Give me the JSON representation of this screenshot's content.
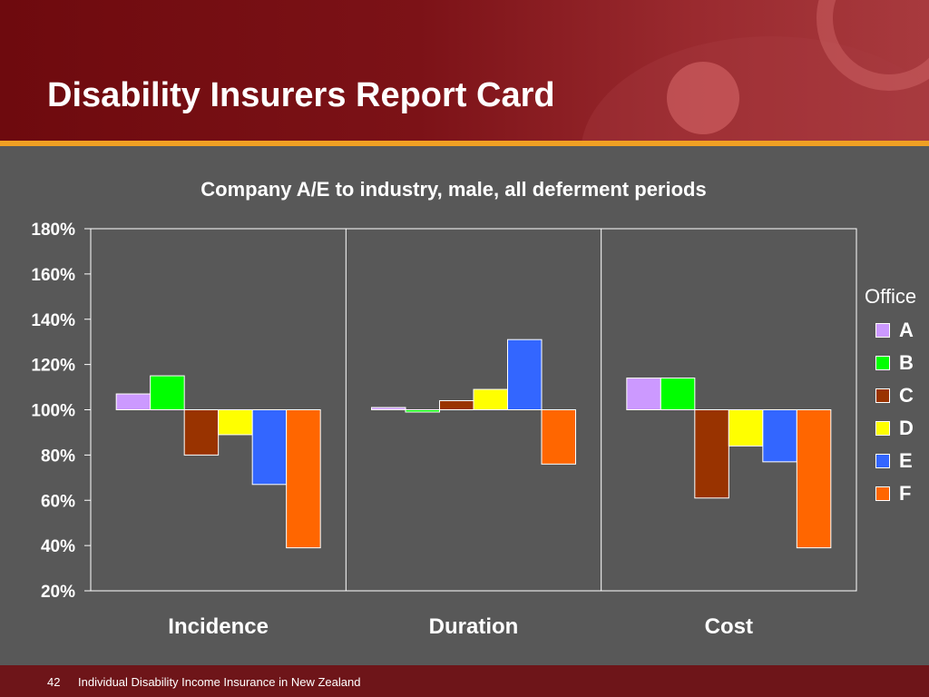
{
  "slide": {
    "title": "Disability Insurers Report Card",
    "page_number": "42",
    "footer_text": "Individual Disability Income Insurance in New Zealand"
  },
  "colors": {
    "header_red": "#7c1217",
    "accent_orange": "#f0a023",
    "background": "#585858",
    "footer_red": "#6e1519"
  },
  "chart_data": {
    "type": "bar",
    "title": "Company A/E to industry, male, all deferment periods",
    "xlabel": "",
    "ylabel": "",
    "ylim": [
      20,
      180
    ],
    "yticks": [
      "180%",
      "160%",
      "140%",
      "120%",
      "100%",
      "80%",
      "60%",
      "40%",
      "20%"
    ],
    "ytick_values": [
      180,
      160,
      140,
      120,
      100,
      80,
      60,
      40,
      20
    ],
    "baseline": 100,
    "categories": [
      "Incidence",
      "Duration",
      "Cost"
    ],
    "legend_title": "Office",
    "legend_position": "right",
    "grid": false,
    "series": [
      {
        "name": "A",
        "color": "#cc99ff",
        "values": [
          107,
          101,
          114
        ]
      },
      {
        "name": "B",
        "color": "#00ff00",
        "values": [
          115,
          99,
          114
        ]
      },
      {
        "name": "C",
        "color": "#993300",
        "values": [
          80,
          104,
          61
        ]
      },
      {
        "name": "D",
        "color": "#ffff00",
        "values": [
          89,
          109,
          84
        ]
      },
      {
        "name": "E",
        "color": "#3366ff",
        "values": [
          67,
          131,
          77
        ]
      },
      {
        "name": "F",
        "color": "#ff6600",
        "values": [
          39,
          76,
          39
        ]
      }
    ]
  }
}
